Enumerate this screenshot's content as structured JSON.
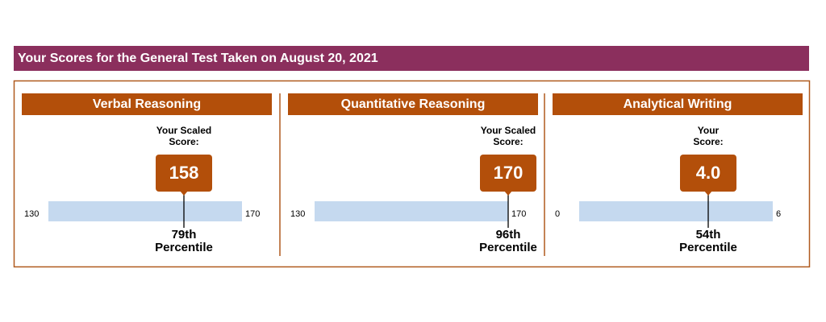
{
  "header": {
    "title": "Your Scores for the General Test Taken on August 20, 2021"
  },
  "sections": [
    {
      "title": "Verbal Reasoning",
      "score_caption": [
        "Your Scaled",
        "Score:"
      ],
      "score": 158,
      "min": 130,
      "max": 170,
      "percentile": "79th",
      "percentile_caption": "Percentile"
    },
    {
      "title": "Quantitative Reasoning",
      "score_caption": [
        "Your Scaled",
        "Score:"
      ],
      "score": 170,
      "min": 130,
      "max": 170,
      "percentile": "96th",
      "percentile_caption": "Percentile"
    },
    {
      "title": "Analytical Writing",
      "score_caption": [
        "Your",
        "Score:"
      ],
      "score": 4,
      "score_label": "4.0",
      "min": 0,
      "max": 6,
      "percentile": "54th",
      "percentile_caption": "Percentile"
    }
  ]
}
